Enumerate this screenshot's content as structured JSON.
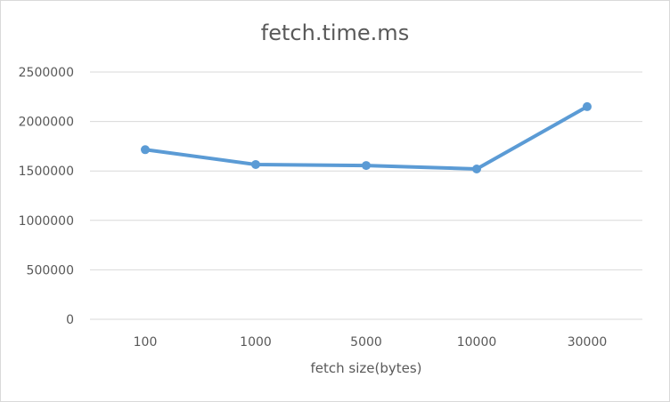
{
  "chart_data": {
    "type": "line",
    "title": "fetch.time.ms",
    "xlabel": "fetch size(bytes)",
    "ylabel": "",
    "categories": [
      "100",
      "1000",
      "5000",
      "10000",
      "30000"
    ],
    "series": [
      {
        "values": [
          1715000,
          1565000,
          1555000,
          1520000,
          2150000
        ]
      }
    ],
    "ylim": [
      0,
      2500000
    ],
    "yticks": [
      "0",
      "500000",
      "1000000",
      "1500000",
      "2000000",
      "2500000"
    ],
    "grid": true,
    "legend": "none",
    "colors": {
      "series": "#5b9bd5",
      "grid": "#d9d9d9",
      "text": "#595959"
    }
  }
}
